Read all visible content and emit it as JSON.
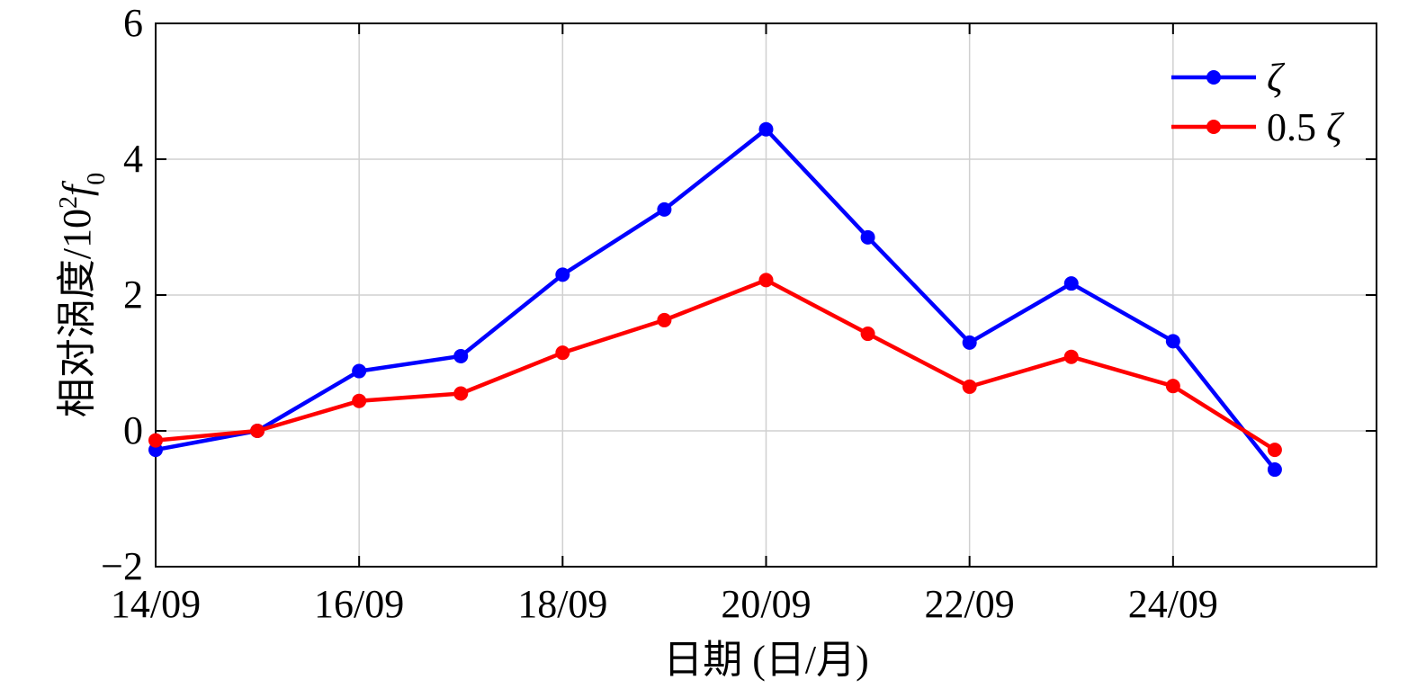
{
  "chart_data": {
    "type": "line",
    "title": "",
    "xlabel": "日期 (日/月)",
    "ylabel": "相对涡度/10",
    "ylabel_exponent": "2",
    "ylabel_symbol": "f",
    "ylabel_subscript": "0",
    "x": [
      "14/09",
      "15/09",
      "16/09",
      "17/09",
      "18/09",
      "19/09",
      "20/09",
      "21/09",
      "22/09",
      "23/09",
      "24/09",
      "25/09"
    ],
    "xtick_labels": [
      "14/09",
      "16/09",
      "18/09",
      "20/09",
      "22/09",
      "24/09"
    ],
    "ytick_labels": [
      "−2",
      "0",
      "2",
      "4",
      "6"
    ],
    "ylim": [
      -2,
      6
    ],
    "xlim": [
      "14/09",
      "26/09"
    ],
    "grid": true,
    "legend_position": "top-right",
    "series": [
      {
        "name": "ζ",
        "color": "#0000ff",
        "values": [
          -0.28,
          0.0,
          0.88,
          1.1,
          2.3,
          3.26,
          4.44,
          2.85,
          1.3,
          2.17,
          1.32,
          -0.57
        ]
      },
      {
        "name": "0.5 ζ",
        "color": "#ff0000",
        "values": [
          -0.14,
          0.0,
          0.44,
          0.55,
          1.15,
          1.63,
          2.22,
          1.43,
          0.65,
          1.09,
          0.66,
          -0.28
        ]
      }
    ]
  }
}
